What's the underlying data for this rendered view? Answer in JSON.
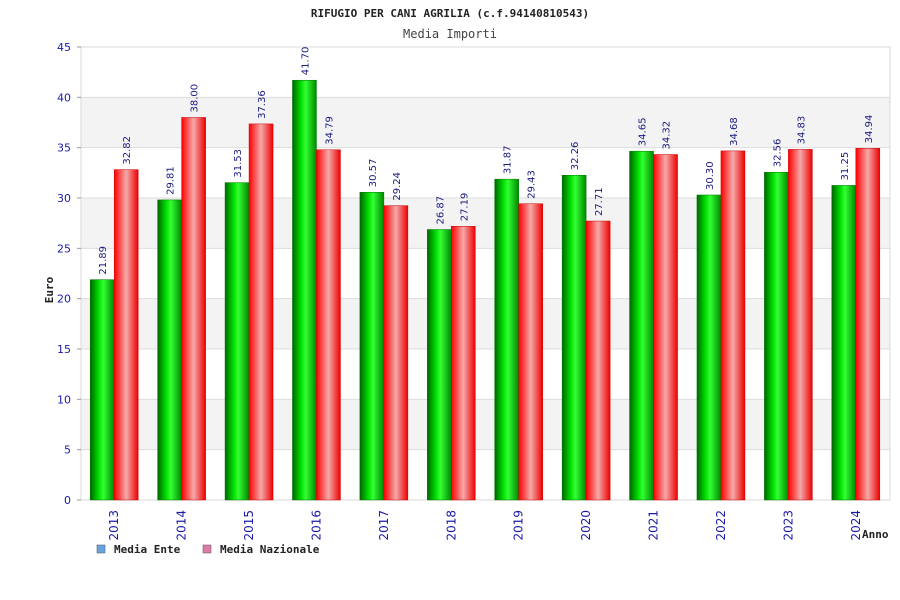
{
  "chart_data": {
    "type": "bar",
    "title": "RIFUGIO PER CANI AGRILIA (c.f.94140810543)",
    "subtitle": "Media Importi",
    "xlabel": "Anno",
    "ylabel": "Euro",
    "ylim": [
      0,
      45
    ],
    "yticks": [
      0,
      5,
      10,
      15,
      20,
      25,
      30,
      35,
      40,
      45
    ],
    "grid": true,
    "legend_position": "bottom-left",
    "categories": [
      "2013",
      "2014",
      "2015",
      "2016",
      "2017",
      "2018",
      "2019",
      "2020",
      "2021",
      "2022",
      "2023",
      "2024"
    ],
    "series": [
      {
        "name": "Media Ente",
        "color": "#00cc00",
        "legend_color": "#66a3e0",
        "values": [
          21.89,
          29.81,
          31.53,
          41.7,
          30.57,
          26.87,
          31.87,
          32.26,
          34.65,
          30.3,
          32.56,
          31.25
        ]
      },
      {
        "name": "Media Nazionale",
        "color": "#ff0000",
        "legend_color": "#e07aa8",
        "values": [
          32.82,
          38.0,
          37.36,
          34.79,
          29.24,
          27.19,
          29.43,
          27.71,
          34.32,
          34.68,
          34.83,
          34.94
        ]
      }
    ]
  }
}
